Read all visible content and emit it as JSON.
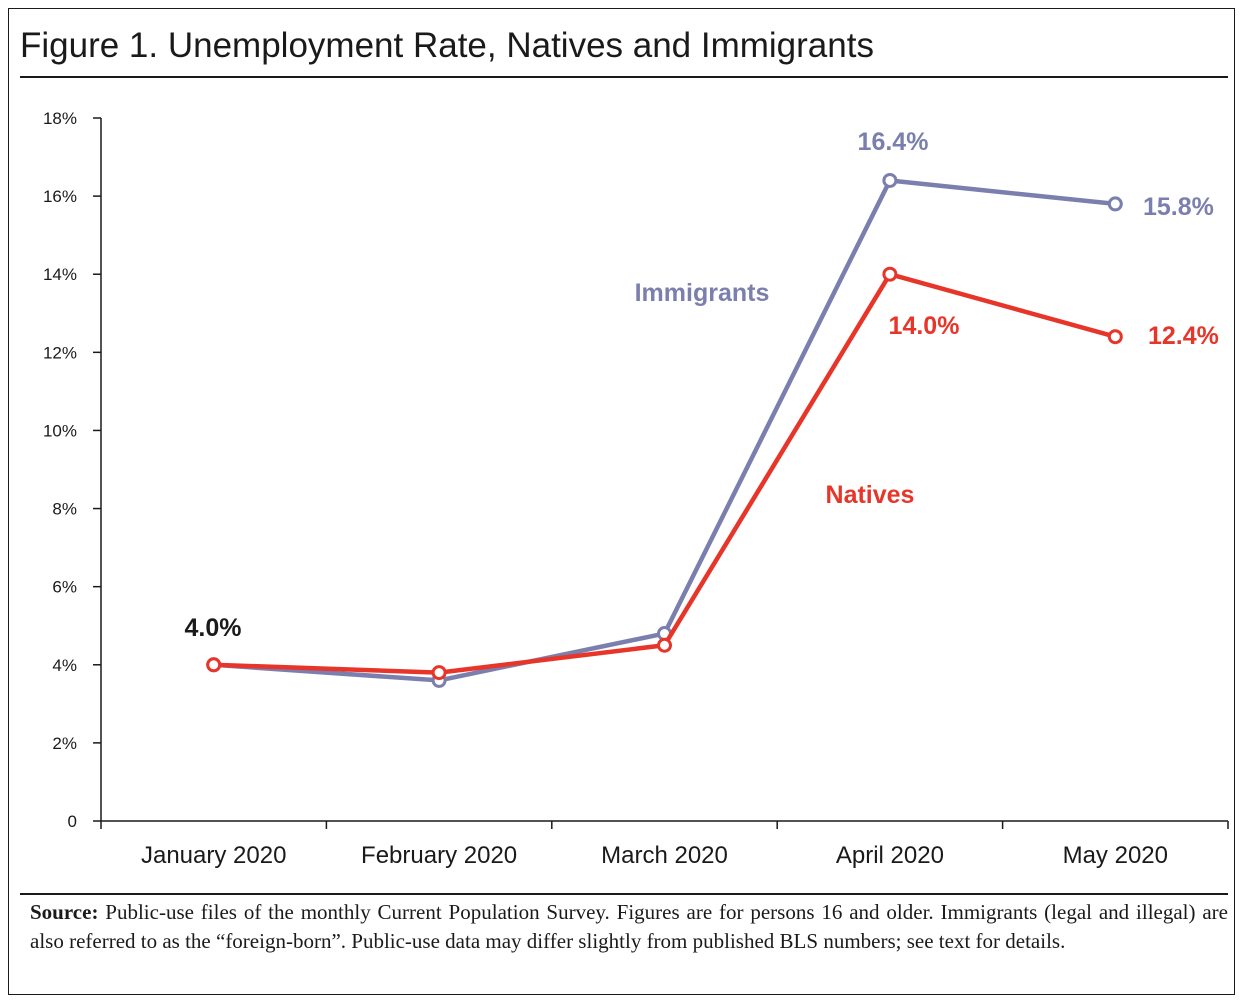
{
  "figure": {
    "title": "Figure 1. Unemployment Rate, Natives and Immigrants",
    "source_label": "Source:",
    "source_text": "Public-use files of the monthly Current Population Survey.  Figures are for persons 16 and older. Immigrants (legal and illegal) are also referred to as the “foreign-born”. Public-use data may differ slightly from published BLS numbers; see text for details."
  },
  "chart_data": {
    "type": "line",
    "title": "Figure 1. Unemployment Rate, Natives and Immigrants",
    "xlabel": "",
    "ylabel": "",
    "categories": [
      "January 2020",
      "February 2020",
      "March 2020",
      "April 2020",
      "May 2020"
    ],
    "ylim": [
      0,
      18
    ],
    "yticks": [
      0,
      2,
      4,
      6,
      8,
      10,
      12,
      14,
      16,
      18
    ],
    "ytick_labels": [
      "0",
      "2%",
      "4%",
      "6%",
      "8%",
      "10%",
      "12%",
      "14%",
      "16%",
      "18%"
    ],
    "grid": false,
    "series": [
      {
        "name": "Immigrants",
        "color": "#7b7fae",
        "values": [
          4.0,
          3.6,
          4.8,
          16.4,
          15.8
        ]
      },
      {
        "name": "Natives",
        "color": "#e8352a",
        "values": [
          4.0,
          3.8,
          4.5,
          14.0,
          12.4
        ]
      }
    ],
    "annotations": [
      {
        "text": "4.0%",
        "x": "January 2020",
        "y": 4.0,
        "color": "#1a1a1a"
      },
      {
        "text": "16.4%",
        "x": "April 2020",
        "y": 16.4,
        "color": "#7b7fae"
      },
      {
        "text": "15.8%",
        "x": "May 2020",
        "y": 15.8,
        "color": "#7b7fae"
      },
      {
        "text": "14.0%",
        "x": "April 2020",
        "y": 14.0,
        "color": "#e8352a"
      },
      {
        "text": "12.4%",
        "x": "May 2020",
        "y": 12.4,
        "color": "#e8352a"
      }
    ]
  }
}
